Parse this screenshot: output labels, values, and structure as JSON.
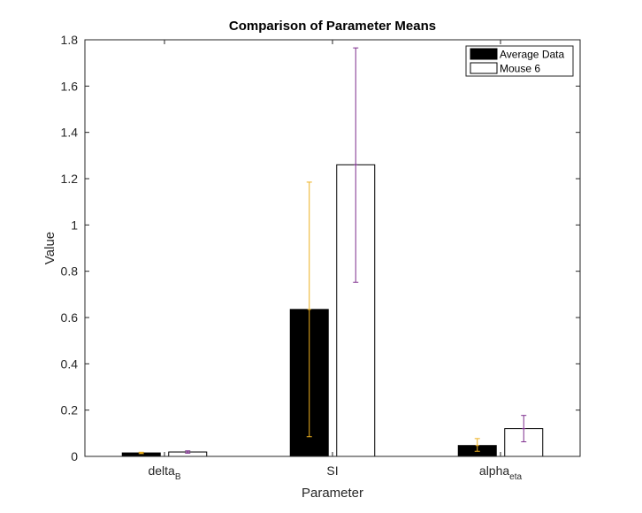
{
  "chart_data": {
    "type": "bar",
    "title": "Comparison of Parameter Means",
    "xlabel": "Parameter",
    "ylabel": "Value",
    "ylim": [
      0,
      1.8
    ],
    "yticks": [
      "0",
      "0.2",
      "0.4",
      "0.6",
      "0.8",
      "1",
      "1.2",
      "1.4",
      "1.6",
      "1.8"
    ],
    "categories": [
      {
        "base": "delta",
        "sub": "B"
      },
      {
        "base": "SI",
        "sub": ""
      },
      {
        "base": "alpha",
        "sub": "eta"
      }
    ],
    "series": [
      {
        "name": "Average Data",
        "values": [
          0.015,
          0.635,
          0.047
        ],
        "err_low": [
          0.012,
          0.085,
          0.022
        ],
        "err_high": [
          0.018,
          1.185,
          0.077
        ],
        "fill": "#000000",
        "errcolor": "#EDB120"
      },
      {
        "name": "Mouse 6",
        "values": [
          0.019,
          1.26,
          0.12
        ],
        "err_low": [
          0.014,
          0.752,
          0.063
        ],
        "err_high": [
          0.024,
          1.765,
          0.177
        ],
        "fill": "#ffffff",
        "errcolor": "#7E2F8E"
      }
    ],
    "legend": "top-right",
    "grid": false
  }
}
